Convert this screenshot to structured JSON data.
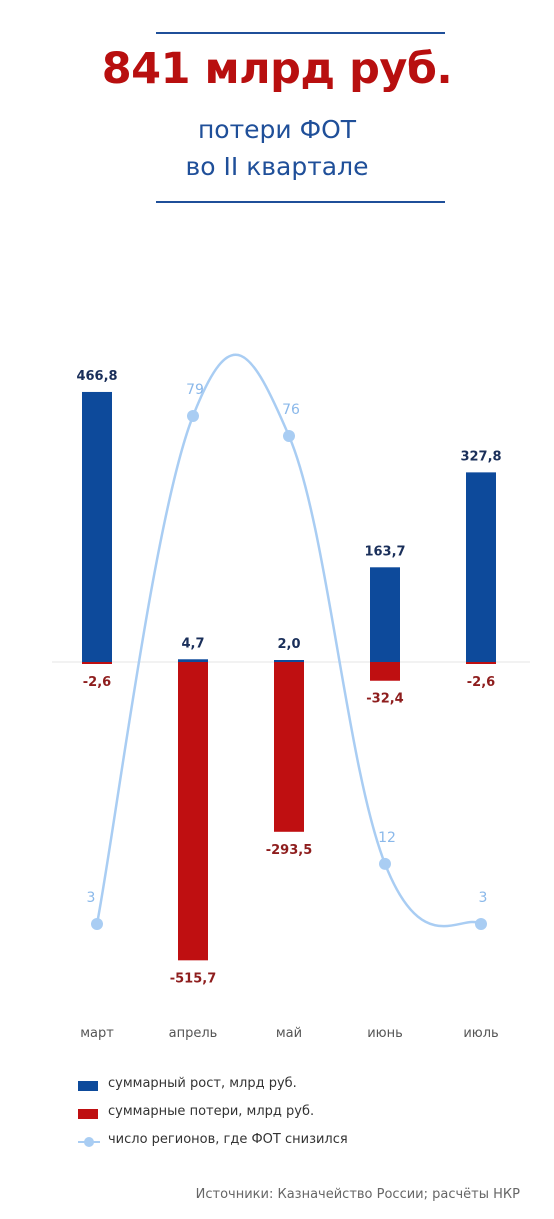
{
  "header": {
    "headline": "841 млрд руб.",
    "subtitle_line1": "потери ФОТ",
    "subtitle_line2": "во II квартале"
  },
  "colors": {
    "growth": "#0d4a9b",
    "losses": "#bf0f11",
    "regions": "#a9cdf3",
    "headline": "#b80f0f",
    "subtitle": "#1f4f99"
  },
  "chart_data": {
    "type": "bar",
    "categories": [
      "март",
      "апрель",
      "май",
      "июнь",
      "июль"
    ],
    "series": [
      {
        "name": "суммарный рост, млрд руб.",
        "values": [
          466.8,
          4.7,
          2.0,
          163.7,
          327.8
        ],
        "labels": [
          "466,8",
          "4,7",
          "2,0",
          "163,7",
          "327,8"
        ]
      },
      {
        "name": "суммарные потери, млрд руб.",
        "values": [
          -2.6,
          -515.7,
          -293.5,
          -32.4,
          -2.6
        ],
        "labels": [
          "-2,6",
          "-515,7",
          "-293,5",
          "-32,4",
          "-2,6"
        ]
      },
      {
        "name": "число регионов, где ФОТ снизился",
        "type": "line",
        "values": [
          3,
          79,
          76,
          12,
          3
        ],
        "labels": [
          "3",
          "79",
          "76",
          "12",
          "3"
        ]
      }
    ],
    "ylim_bars": [
      -515.7,
      466.8
    ],
    "ylim_line": [
      3,
      79
    ],
    "legend_position": "bottom-left",
    "grid": false
  },
  "legend": [
    {
      "label": "суммарный рост, млрд руб.",
      "kind": "bar",
      "color": "#0d4a9b"
    },
    {
      "label": "суммарные потери, млрд руб.",
      "kind": "bar",
      "color": "#bf0f11"
    },
    {
      "label": "число регионов, где ФОТ снизился",
      "kind": "line",
      "color": "#a9cdf3"
    }
  ],
  "footer": {
    "source": "Источники: Казначейство России; расчёты НКР"
  }
}
